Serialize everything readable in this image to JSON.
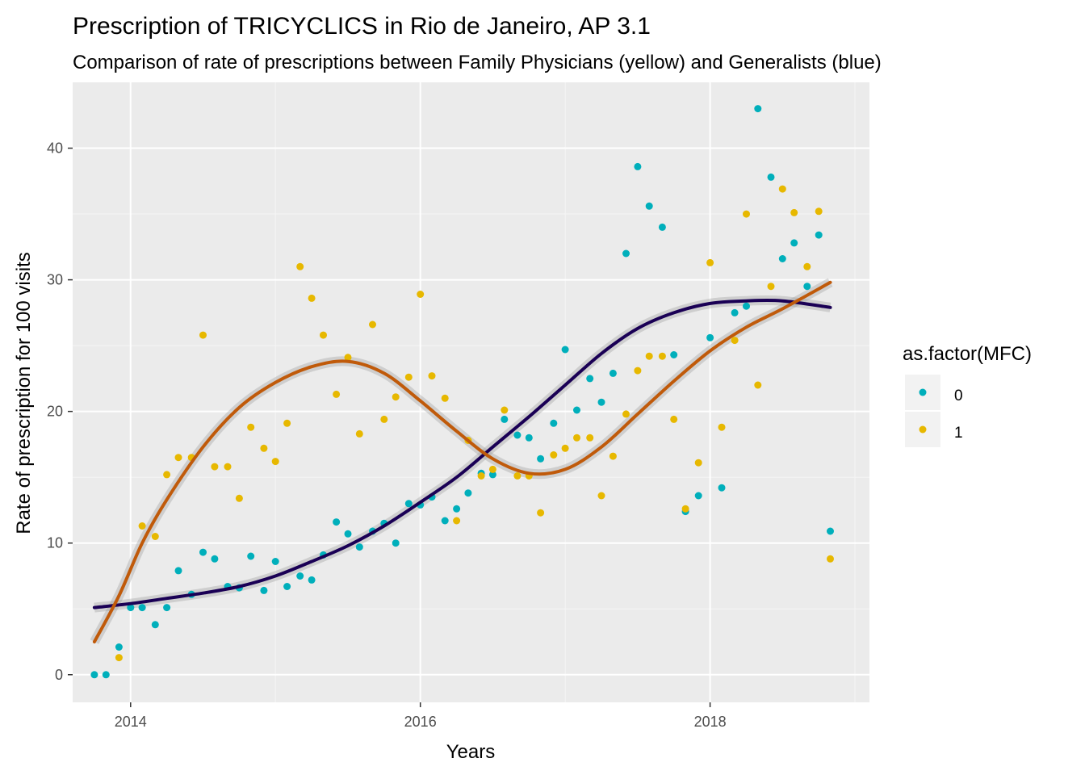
{
  "chart_data": {
    "type": "scatter",
    "title": "Prescription of TRICYCLICS in Rio de Janeiro, AP 3.1",
    "subtitle": "Comparison of rate of prescriptions between Family Physicians (yellow) and Generalists (blue)",
    "xlabel": "Years",
    "ylabel": "Rate of prescription for 100 visits",
    "xlim": [
      2013.6,
      2019.1
    ],
    "ylim": [
      -2.1,
      45.0
    ],
    "x_ticks": [
      2014,
      2016,
      2018
    ],
    "x_tick_labels": [
      "2014",
      "2016",
      "2018"
    ],
    "y_ticks": [
      0,
      10,
      20,
      30,
      40
    ],
    "y_tick_labels": [
      "0",
      "10",
      "20",
      "30",
      "40"
    ],
    "grid": true,
    "panel_background": "#ebebeb",
    "legend": {
      "title": "as.factor(MFC)",
      "position": "right",
      "items": [
        {
          "label": "0",
          "color": "#00AFBB"
        },
        {
          "label": "1",
          "color": "#E7B800"
        }
      ]
    },
    "series": [
      {
        "name": "0",
        "color": "#00AFBB",
        "points": [
          [
            2013.75,
            0.0
          ],
          [
            2013.83,
            0.0
          ],
          [
            2013.92,
            2.1
          ],
          [
            2014.0,
            5.1
          ],
          [
            2014.08,
            5.1
          ],
          [
            2014.17,
            3.8
          ],
          [
            2014.25,
            5.1
          ],
          [
            2014.33,
            7.9
          ],
          [
            2014.42,
            6.1
          ],
          [
            2014.5,
            9.3
          ],
          [
            2014.58,
            8.8
          ],
          [
            2014.67,
            6.7
          ],
          [
            2014.75,
            6.6
          ],
          [
            2014.83,
            9.0
          ],
          [
            2014.92,
            6.4
          ],
          [
            2015.0,
            8.6
          ],
          [
            2015.08,
            6.7
          ],
          [
            2015.17,
            7.5
          ],
          [
            2015.25,
            7.2
          ],
          [
            2015.33,
            9.1
          ],
          [
            2015.42,
            11.6
          ],
          [
            2015.5,
            10.7
          ],
          [
            2015.58,
            9.7
          ],
          [
            2015.67,
            10.9
          ],
          [
            2015.75,
            11.5
          ],
          [
            2015.83,
            10.0
          ],
          [
            2015.92,
            13.0
          ],
          [
            2016.0,
            12.9
          ],
          [
            2016.08,
            13.5
          ],
          [
            2016.17,
            11.7
          ],
          [
            2016.25,
            12.6
          ],
          [
            2016.33,
            13.8
          ],
          [
            2016.42,
            15.3
          ],
          [
            2016.5,
            15.2
          ],
          [
            2016.58,
            19.4
          ],
          [
            2016.67,
            18.2
          ],
          [
            2016.75,
            18.0
          ],
          [
            2016.83,
            16.4
          ],
          [
            2016.92,
            19.1
          ],
          [
            2017.0,
            24.7
          ],
          [
            2017.08,
            20.1
          ],
          [
            2017.17,
            22.5
          ],
          [
            2017.25,
            20.7
          ],
          [
            2017.33,
            22.9
          ],
          [
            2017.42,
            32.0
          ],
          [
            2017.5,
            38.6
          ],
          [
            2017.58,
            35.6
          ],
          [
            2017.67,
            34.0
          ],
          [
            2017.75,
            24.3
          ],
          [
            2017.83,
            12.4
          ],
          [
            2017.92,
            13.6
          ],
          [
            2018.0,
            25.6
          ],
          [
            2018.08,
            14.2
          ],
          [
            2018.17,
            27.5
          ],
          [
            2018.25,
            28.0
          ],
          [
            2018.33,
            43.0
          ],
          [
            2018.42,
            37.8
          ],
          [
            2018.5,
            31.6
          ],
          [
            2018.58,
            32.8
          ],
          [
            2018.67,
            29.5
          ],
          [
            2018.75,
            33.4
          ],
          [
            2018.83,
            10.9
          ]
        ],
        "trend": [
          [
            2013.75,
            5.1
          ],
          [
            2014.0,
            5.4
          ],
          [
            2014.25,
            5.8
          ],
          [
            2014.5,
            6.2
          ],
          [
            2014.75,
            6.7
          ],
          [
            2015.0,
            7.5
          ],
          [
            2015.25,
            8.6
          ],
          [
            2015.5,
            9.8
          ],
          [
            2015.75,
            11.3
          ],
          [
            2016.0,
            13.1
          ],
          [
            2016.25,
            15.0
          ],
          [
            2016.5,
            17.3
          ],
          [
            2016.75,
            19.6
          ],
          [
            2017.0,
            22.0
          ],
          [
            2017.25,
            24.4
          ],
          [
            2017.5,
            26.3
          ],
          [
            2017.75,
            27.5
          ],
          [
            2018.0,
            28.2
          ],
          [
            2018.25,
            28.4
          ],
          [
            2018.5,
            28.4
          ],
          [
            2018.83,
            27.9
          ]
        ]
      },
      {
        "name": "1",
        "color": "#E7B800",
        "points": [
          [
            2013.92,
            1.3
          ],
          [
            2014.08,
            11.3
          ],
          [
            2014.17,
            10.5
          ],
          [
            2014.25,
            15.2
          ],
          [
            2014.33,
            16.5
          ],
          [
            2014.42,
            16.5
          ],
          [
            2014.5,
            25.8
          ],
          [
            2014.58,
            15.8
          ],
          [
            2014.67,
            15.8
          ],
          [
            2014.75,
            13.4
          ],
          [
            2014.83,
            18.8
          ],
          [
            2014.92,
            17.2
          ],
          [
            2015.0,
            16.2
          ],
          [
            2015.08,
            19.1
          ],
          [
            2015.17,
            31.0
          ],
          [
            2015.25,
            28.6
          ],
          [
            2015.33,
            25.8
          ],
          [
            2015.42,
            21.3
          ],
          [
            2015.5,
            24.1
          ],
          [
            2015.58,
            18.3
          ],
          [
            2015.67,
            26.6
          ],
          [
            2015.75,
            19.4
          ],
          [
            2015.83,
            21.1
          ],
          [
            2015.92,
            22.6
          ],
          [
            2016.0,
            28.9
          ],
          [
            2016.08,
            22.7
          ],
          [
            2016.17,
            21.0
          ],
          [
            2016.25,
            11.7
          ],
          [
            2016.33,
            17.8
          ],
          [
            2016.42,
            15.1
          ],
          [
            2016.5,
            15.6
          ],
          [
            2016.58,
            20.1
          ],
          [
            2016.67,
            15.1
          ],
          [
            2016.75,
            15.1
          ],
          [
            2016.83,
            12.3
          ],
          [
            2016.92,
            16.7
          ],
          [
            2017.0,
            17.2
          ],
          [
            2017.08,
            18.0
          ],
          [
            2017.17,
            18.0
          ],
          [
            2017.25,
            13.6
          ],
          [
            2017.33,
            16.6
          ],
          [
            2017.42,
            19.8
          ],
          [
            2017.5,
            23.1
          ],
          [
            2017.58,
            24.2
          ],
          [
            2017.67,
            24.2
          ],
          [
            2017.75,
            19.4
          ],
          [
            2017.83,
            12.6
          ],
          [
            2017.92,
            16.1
          ],
          [
            2018.0,
            31.3
          ],
          [
            2018.08,
            18.8
          ],
          [
            2018.17,
            25.4
          ],
          [
            2018.25,
            35.0
          ],
          [
            2018.33,
            22.0
          ],
          [
            2018.42,
            29.5
          ],
          [
            2018.5,
            36.9
          ],
          [
            2018.58,
            35.1
          ],
          [
            2018.67,
            31.0
          ],
          [
            2018.75,
            35.2
          ],
          [
            2018.83,
            8.8
          ]
        ],
        "trend": [
          [
            2013.75,
            2.5
          ],
          [
            2013.92,
            6.0
          ],
          [
            2014.08,
            10.0
          ],
          [
            2014.25,
            13.3
          ],
          [
            2014.5,
            17.3
          ],
          [
            2014.75,
            20.3
          ],
          [
            2015.0,
            22.2
          ],
          [
            2015.25,
            23.4
          ],
          [
            2015.5,
            23.8
          ],
          [
            2015.75,
            22.9
          ],
          [
            2016.0,
            20.8
          ],
          [
            2016.25,
            18.5
          ],
          [
            2016.5,
            16.4
          ],
          [
            2016.75,
            15.3
          ],
          [
            2017.0,
            15.6
          ],
          [
            2017.25,
            17.3
          ],
          [
            2017.5,
            19.8
          ],
          [
            2017.75,
            22.3
          ],
          [
            2018.0,
            24.6
          ],
          [
            2018.25,
            26.4
          ],
          [
            2018.5,
            27.8
          ],
          [
            2018.83,
            29.8
          ]
        ]
      }
    ]
  }
}
